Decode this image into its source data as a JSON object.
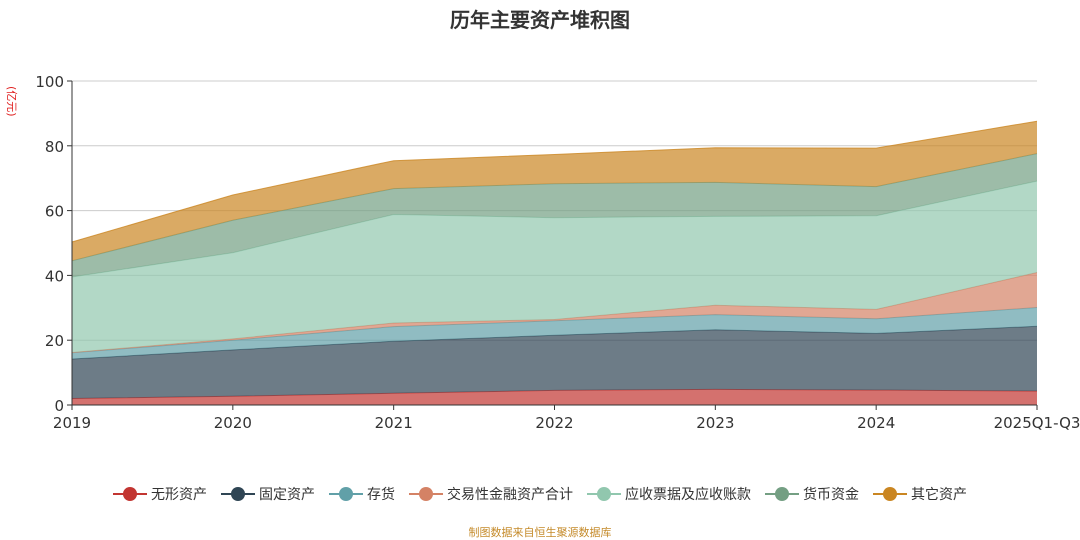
{
  "chart_data": {
    "type": "area",
    "stacked": true,
    "title": "历年主要资产堆积图",
    "unit_label": "(亿元)",
    "x": [
      "2019",
      "2020",
      "2021",
      "2022",
      "2023",
      "2024",
      "2025Q1-Q3"
    ],
    "ylim": [
      0,
      100
    ],
    "yticks": [
      0,
      20,
      40,
      60,
      80,
      100
    ],
    "grid": true,
    "legend_position": "bottom",
    "series": [
      {
        "name": "无形资产",
        "color": "#c23531",
        "values": [
          2.0,
          2.7,
          3.6,
          4.5,
          4.8,
          4.6,
          4.3
        ]
      },
      {
        "name": "固定资产",
        "color": "#2f4554",
        "values": [
          12.2,
          14.3,
          16.1,
          17.0,
          18.4,
          17.5,
          20.0
        ]
      },
      {
        "name": "存货",
        "color": "#61a0a8",
        "values": [
          1.9,
          3.0,
          4.5,
          4.5,
          4.7,
          4.5,
          5.8
        ]
      },
      {
        "name": "交易性金融资产合计",
        "color": "#d48265",
        "values": [
          0.1,
          0.4,
          1.1,
          0.4,
          2.9,
          2.9,
          10.8
        ]
      },
      {
        "name": "应收票据及应收账款",
        "color": "#91c7ae",
        "values": [
          23.3,
          26.6,
          33.5,
          31.4,
          27.4,
          28.9,
          28.2
        ]
      },
      {
        "name": "货币资金",
        "color": "#749f83",
        "values": [
          5.0,
          10.0,
          8.0,
          10.5,
          10.5,
          9.0,
          8.5
        ]
      },
      {
        "name": "其它资产",
        "color": "#ca8622",
        "values": [
          5.8,
          7.8,
          8.6,
          9.0,
          10.7,
          11.9,
          10.0
        ]
      }
    ]
  },
  "source_text": "制图数据来自恒生聚源数据库"
}
